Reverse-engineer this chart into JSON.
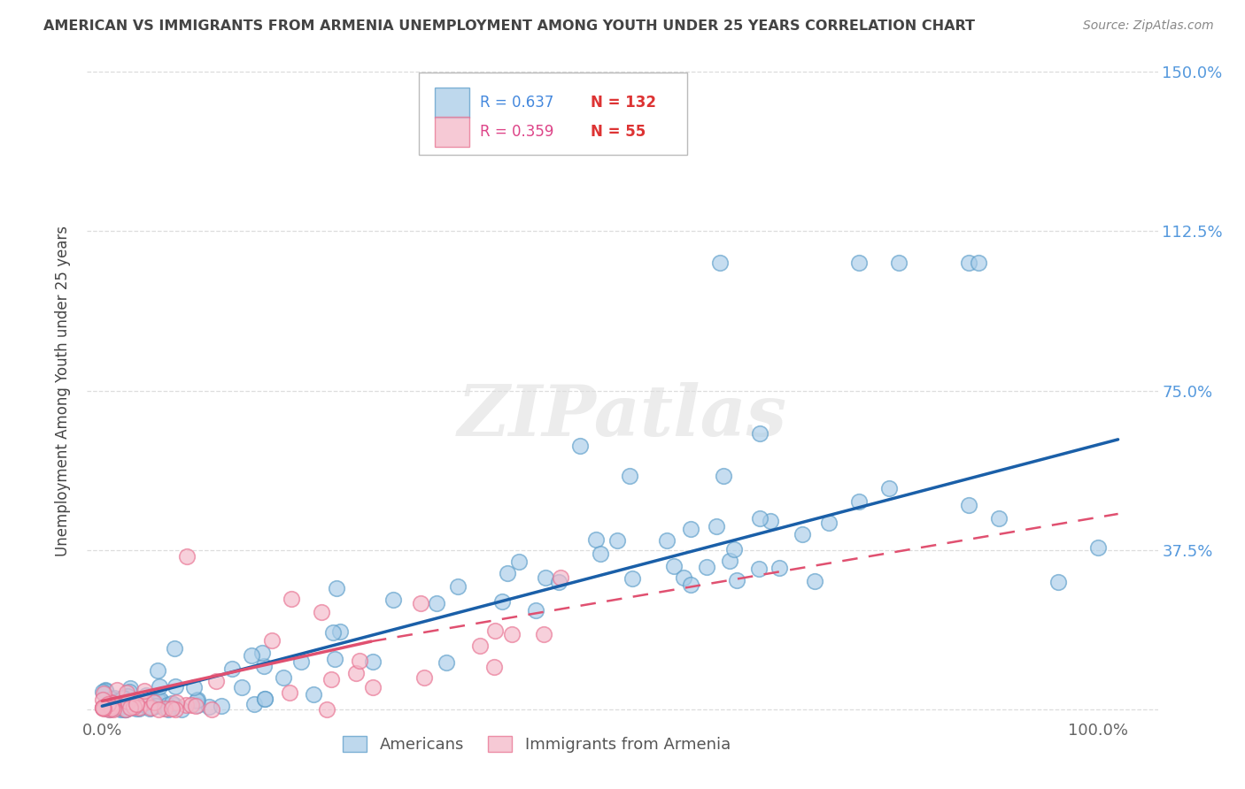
{
  "title": "AMERICAN VS IMMIGRANTS FROM ARMENIA UNEMPLOYMENT AMONG YOUTH UNDER 25 YEARS CORRELATION CHART",
  "source": "Source: ZipAtlas.com",
  "ylabel": "Unemployment Among Youth under 25 years",
  "americans_R": 0.637,
  "americans_N": 132,
  "armenia_R": 0.359,
  "armenia_N": 55,
  "legend_americans": "Americans",
  "legend_armenia": "Immigrants from Armenia",
  "color_americans_face": "#a8cce8",
  "color_americans_edge": "#5b9dc9",
  "color_armenia_face": "#f4b8c8",
  "color_armenia_edge": "#e87090",
  "color_line_americans": "#1a5fa8",
  "color_line_armenia": "#e05070",
  "watermark_text": "ZIPatlas",
  "background_color": "#ffffff",
  "title_color": "#444444",
  "source_color": "#888888",
  "ylabel_color": "#444444",
  "tick_color_right": "#5599dd",
  "grid_color": "#dddddd",
  "legend_R_color_americans": "#4488dd",
  "legend_N_color_americans": "#dd3333",
  "legend_R_color_armenia": "#dd4488",
  "legend_N_color_armenia": "#dd3333"
}
